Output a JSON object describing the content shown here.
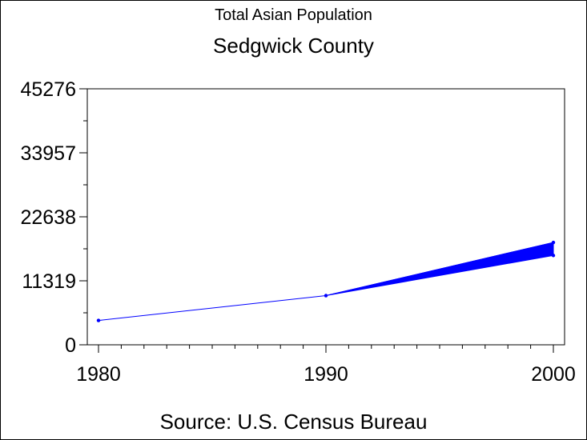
{
  "chart_data": {
    "type": "line",
    "title": "Total Asian Population",
    "subtitle": "Sedgwick County",
    "footnote": "Source: U.S. Census Bureau",
    "x": [
      1980,
      1990,
      2000
    ],
    "series": [
      {
        "values": [
          4300,
          8700,
          18100
        ]
      }
    ],
    "band": {
      "x": [
        1990,
        2000
      ],
      "upper": [
        8700,
        18100
      ],
      "lower": [
        8700,
        15800
      ]
    },
    "xlim": [
      1980,
      2000
    ],
    "ylim": [
      0,
      45276
    ],
    "yticks": [
      0,
      11319,
      22638,
      33957,
      45276
    ],
    "xticks": [
      1980,
      1990,
      2000
    ],
    "color": "#0000ff",
    "grid": false
  }
}
